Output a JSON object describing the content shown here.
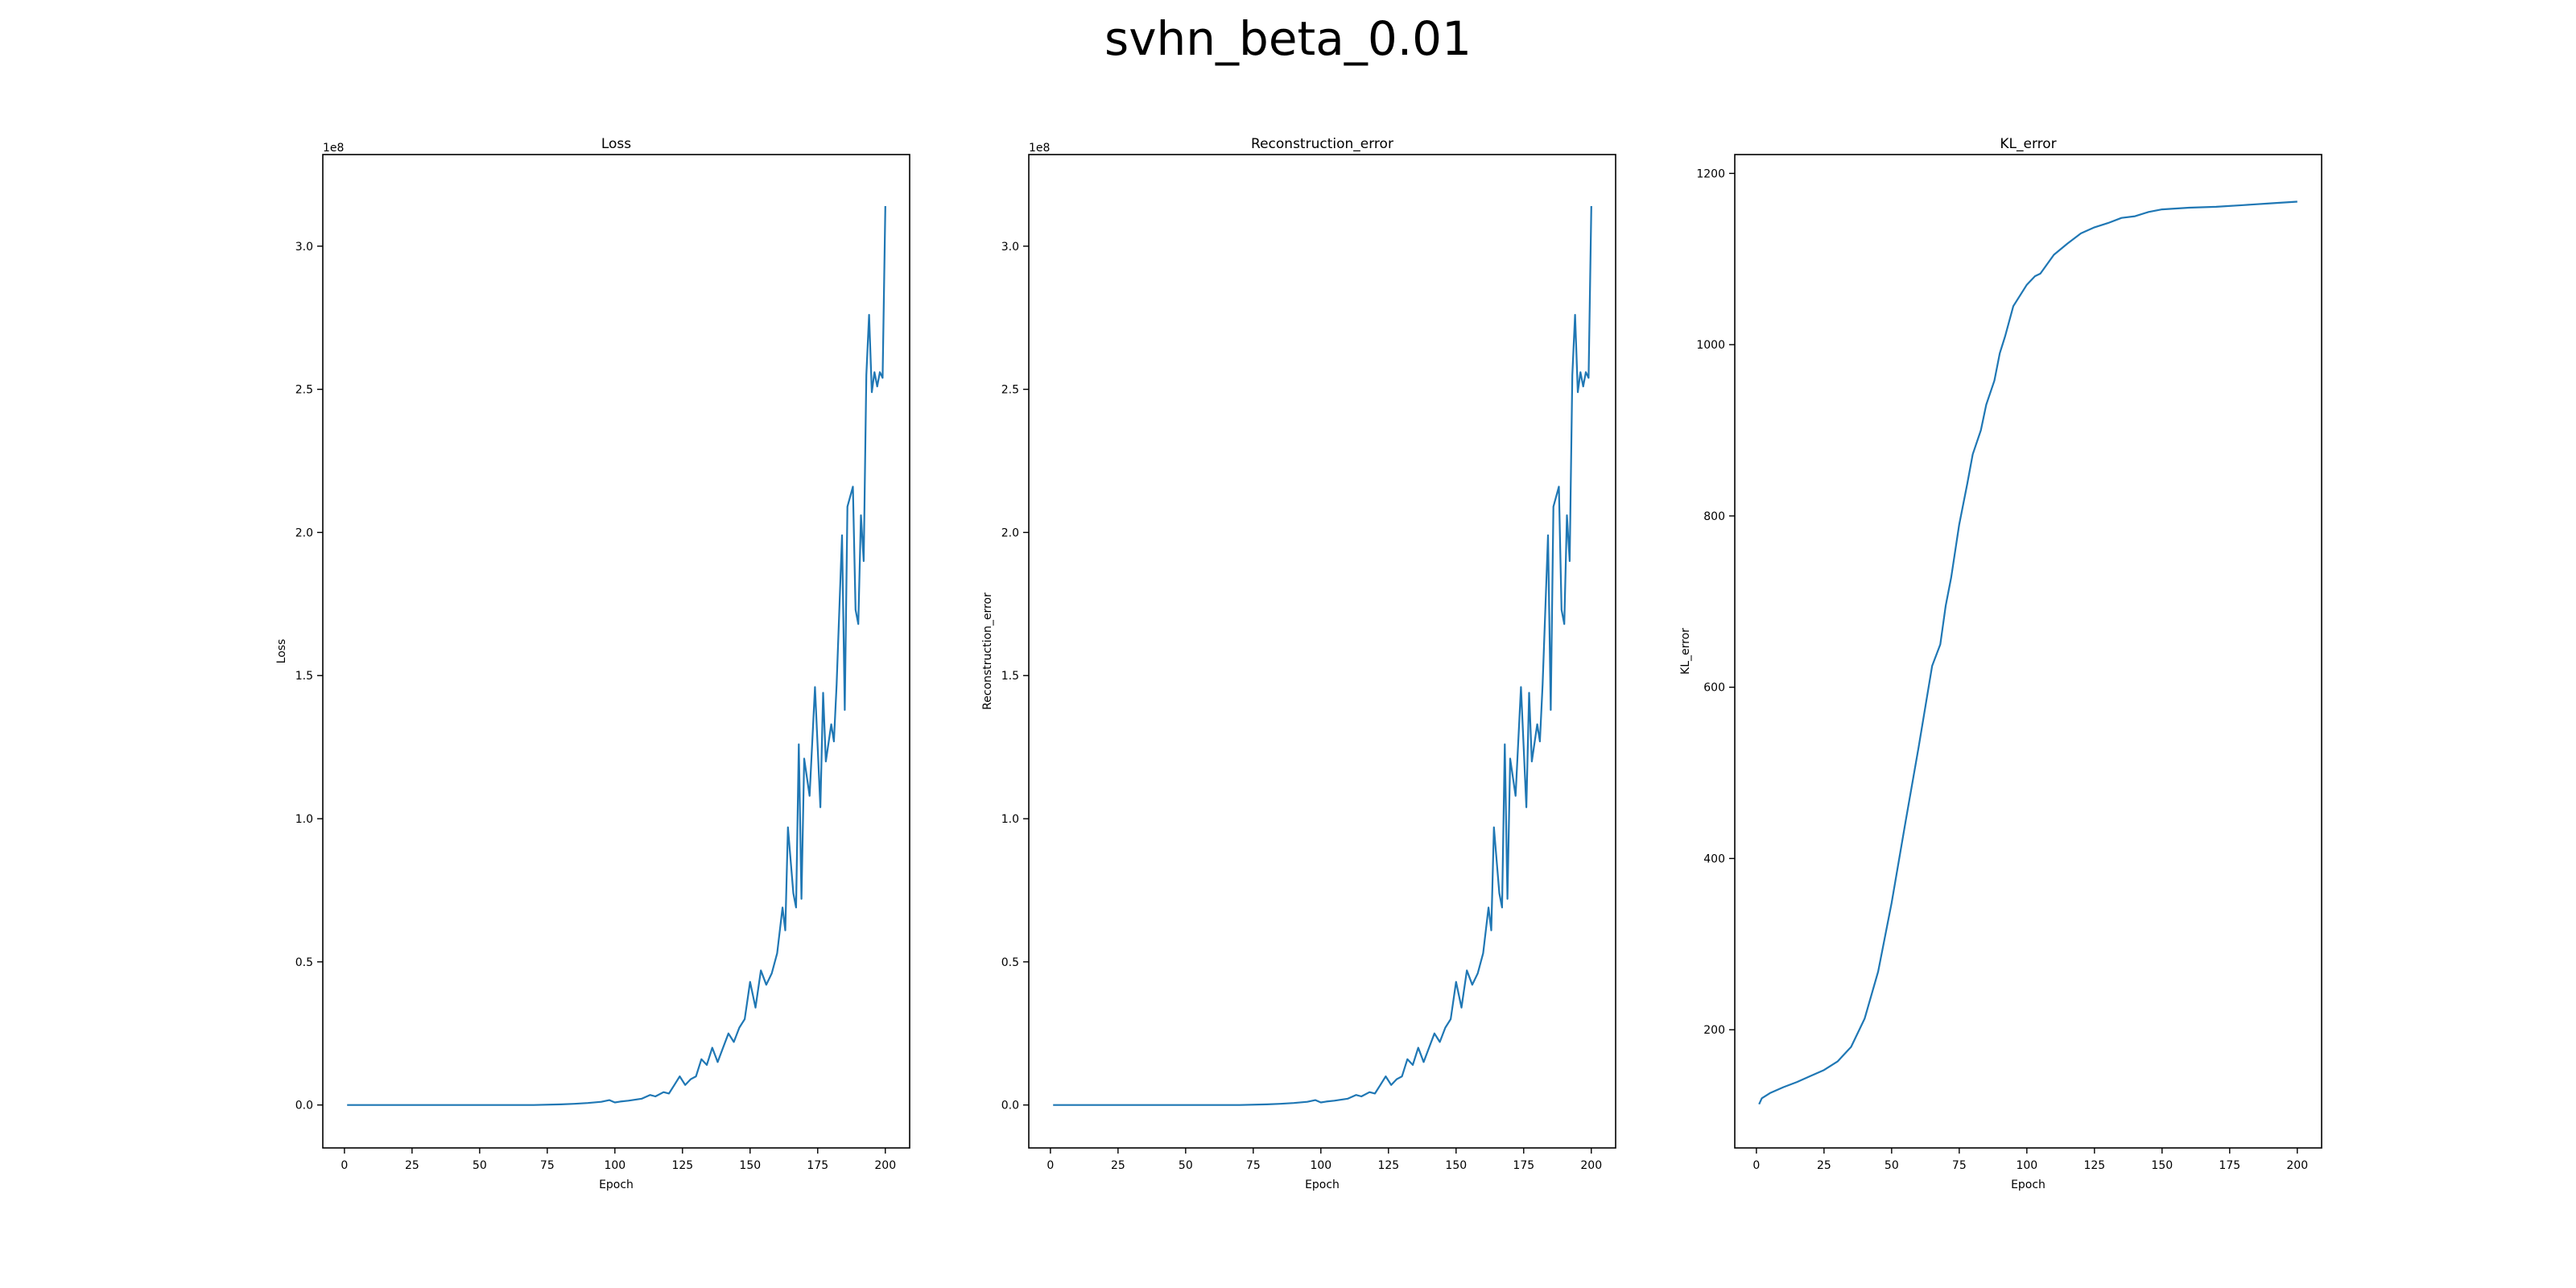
{
  "figure": {
    "title": "svhn_beta_0.01"
  },
  "chart_data": [
    {
      "type": "line",
      "title": "Loss",
      "xlabel": "Epoch",
      "ylabel": "Loss",
      "offset_text": "1e8",
      "xlim": [
        -8,
        209
      ],
      "ylim": [
        -0.15,
        3.32
      ],
      "xticks": [
        0,
        25,
        50,
        75,
        100,
        125,
        150,
        175,
        200
      ],
      "yticks": [
        0.0,
        0.5,
        1.0,
        1.5,
        2.0,
        2.5,
        3.0
      ],
      "ytick_labels": [
        "0.0",
        "0.5",
        "1.0",
        "1.5",
        "2.0",
        "2.5",
        "3.0"
      ],
      "series": [
        {
          "color": "#1f77b4",
          "x": [
            1,
            10,
            20,
            30,
            40,
            50,
            60,
            70,
            80,
            85,
            90,
            95,
            98,
            100,
            102,
            105,
            110,
            113,
            115,
            118,
            120,
            122,
            124,
            126,
            128,
            130,
            132,
            134,
            136,
            138,
            140,
            142,
            144,
            146,
            148,
            150,
            152,
            154,
            156,
            158,
            160,
            162,
            163,
            164,
            166,
            167,
            168,
            169,
            170,
            172,
            174,
            176,
            177,
            178,
            180,
            181,
            182,
            184,
            185,
            186,
            188,
            189,
            190,
            191,
            192,
            193,
            194,
            195,
            196,
            197,
            198,
            199,
            200
          ],
          "y": [
            0.0,
            0.0,
            0.0,
            0.0,
            0.0,
            0.0,
            0.0,
            0.0,
            0.002,
            0.004,
            0.007,
            0.011,
            0.017,
            0.009,
            0.012,
            0.015,
            0.022,
            0.035,
            0.03,
            0.045,
            0.04,
            0.07,
            0.1,
            0.07,
            0.09,
            0.1,
            0.16,
            0.14,
            0.2,
            0.15,
            0.2,
            0.25,
            0.22,
            0.27,
            0.3,
            0.43,
            0.34,
            0.47,
            0.42,
            0.46,
            0.53,
            0.69,
            0.61,
            0.97,
            0.74,
            0.69,
            1.26,
            0.72,
            1.21,
            1.08,
            1.46,
            1.04,
            1.44,
            1.2,
            1.33,
            1.27,
            1.47,
            1.99,
            1.38,
            2.09,
            2.16,
            1.73,
            1.68,
            2.06,
            1.9,
            2.55,
            2.76,
            2.49,
            2.56,
            2.51,
            2.56,
            2.54,
            3.14
          ]
        }
      ]
    },
    {
      "type": "line",
      "title": "Reconstruction_error",
      "xlabel": "Epoch",
      "ylabel": "Reconstruction_error",
      "offset_text": "1e8",
      "xlim": [
        -8,
        209
      ],
      "ylim": [
        -0.15,
        3.32
      ],
      "xticks": [
        0,
        25,
        50,
        75,
        100,
        125,
        150,
        175,
        200
      ],
      "yticks": [
        0.0,
        0.5,
        1.0,
        1.5,
        2.0,
        2.5,
        3.0
      ],
      "ytick_labels": [
        "0.0",
        "0.5",
        "1.0",
        "1.5",
        "2.0",
        "2.5",
        "3.0"
      ],
      "series": [
        {
          "color": "#1f77b4",
          "x": [
            1,
            10,
            20,
            30,
            40,
            50,
            60,
            70,
            80,
            85,
            90,
            95,
            98,
            100,
            102,
            105,
            110,
            113,
            115,
            118,
            120,
            122,
            124,
            126,
            128,
            130,
            132,
            134,
            136,
            138,
            140,
            142,
            144,
            146,
            148,
            150,
            152,
            154,
            156,
            158,
            160,
            162,
            163,
            164,
            166,
            167,
            168,
            169,
            170,
            172,
            174,
            176,
            177,
            178,
            180,
            181,
            182,
            184,
            185,
            186,
            188,
            189,
            190,
            191,
            192,
            193,
            194,
            195,
            196,
            197,
            198,
            199,
            200
          ],
          "y": [
            0.0,
            0.0,
            0.0,
            0.0,
            0.0,
            0.0,
            0.0,
            0.0,
            0.002,
            0.004,
            0.007,
            0.011,
            0.017,
            0.009,
            0.012,
            0.015,
            0.022,
            0.035,
            0.03,
            0.045,
            0.04,
            0.07,
            0.1,
            0.07,
            0.09,
            0.1,
            0.16,
            0.14,
            0.2,
            0.15,
            0.2,
            0.25,
            0.22,
            0.27,
            0.3,
            0.43,
            0.34,
            0.47,
            0.42,
            0.46,
            0.53,
            0.69,
            0.61,
            0.97,
            0.74,
            0.69,
            1.26,
            0.72,
            1.21,
            1.08,
            1.46,
            1.04,
            1.44,
            1.2,
            1.33,
            1.27,
            1.47,
            1.99,
            1.38,
            2.09,
            2.16,
            1.73,
            1.68,
            2.06,
            1.9,
            2.55,
            2.76,
            2.49,
            2.56,
            2.51,
            2.56,
            2.54,
            3.14
          ]
        }
      ]
    },
    {
      "type": "line",
      "title": "KL_error",
      "xlabel": "Epoch",
      "ylabel": "KL_error",
      "offset_text": "",
      "xlim": [
        -8,
        209
      ],
      "ylim": [
        62,
        1222
      ],
      "xticks": [
        0,
        25,
        50,
        75,
        100,
        125,
        150,
        175,
        200
      ],
      "yticks": [
        200,
        400,
        600,
        800,
        1000,
        1200
      ],
      "ytick_labels": [
        "200",
        "400",
        "600",
        "800",
        "1000",
        "1200"
      ],
      "series": [
        {
          "color": "#1f77b4",
          "x": [
            1,
            2,
            5,
            10,
            15,
            20,
            25,
            30,
            35,
            40,
            45,
            50,
            55,
            60,
            65,
            68,
            70,
            72,
            75,
            78,
            80,
            83,
            85,
            88,
            90,
            92,
            95,
            98,
            100,
            103,
            105,
            110,
            115,
            120,
            125,
            130,
            135,
            140,
            145,
            150,
            160,
            170,
            180,
            190,
            200
          ],
          "y": [
            113,
            120,
            126,
            133,
            139,
            146,
            153,
            163,
            180,
            213,
            268,
            348,
            440,
            530,
            625,
            650,
            695,
            728,
            790,
            838,
            872,
            900,
            930,
            958,
            990,
            1010,
            1045,
            1060,
            1070,
            1080,
            1083,
            1105,
            1118,
            1130,
            1137,
            1142,
            1148,
            1150,
            1155,
            1158,
            1160,
            1161,
            1163,
            1165,
            1167
          ]
        }
      ]
    }
  ]
}
